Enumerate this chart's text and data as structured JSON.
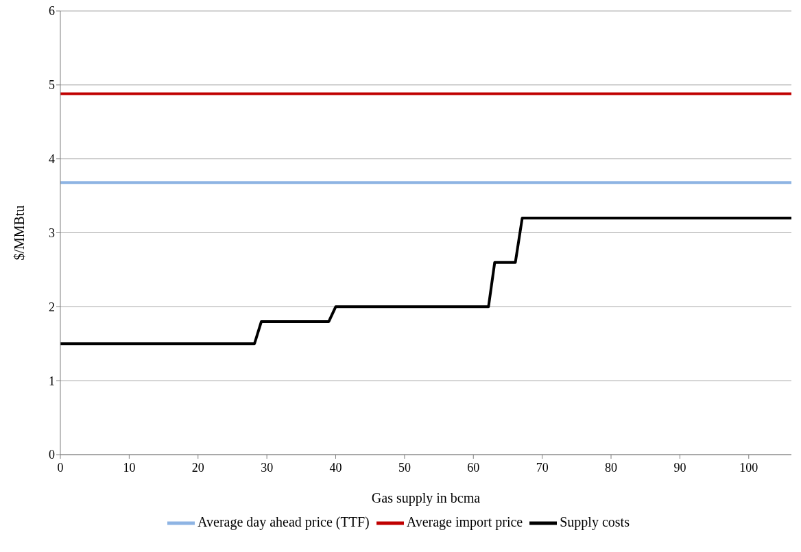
{
  "chart_data": {
    "type": "line",
    "xlabel": "Gas supply in bcma",
    "ylabel": "$/MMBtu",
    "xlim": [
      0,
      106.2
    ],
    "xticks": [
      0,
      10,
      20,
      30,
      40,
      50,
      60,
      70,
      80,
      90,
      100
    ],
    "ylim": [
      0,
      6
    ],
    "yticks": [
      0,
      1,
      2,
      3,
      4,
      5,
      6
    ],
    "grid": "y",
    "legend": "bottom",
    "marker": "none",
    "line_style": "solid",
    "series": [
      {
        "name": "Supply costs",
        "color": "#000000",
        "x": [
          0,
          28.2,
          29.2,
          39.0,
          40.0,
          62.2,
          63.1,
          66.1,
          67.1,
          106.2
        ],
        "values": [
          1.5,
          1.5,
          1.8,
          1.8,
          2.0,
          2.0,
          2.6,
          2.6,
          3.2,
          3.2
        ]
      },
      {
        "name": "Average import price",
        "color": "#c00000",
        "x": [
          0,
          106.2
        ],
        "values": [
          4.88,
          4.88
        ]
      },
      {
        "name": "Average day ahead price (TTF)",
        "color": "#8eb4e3",
        "x": [
          0,
          106.2
        ],
        "values": [
          3.68,
          3.68
        ]
      }
    ]
  }
}
